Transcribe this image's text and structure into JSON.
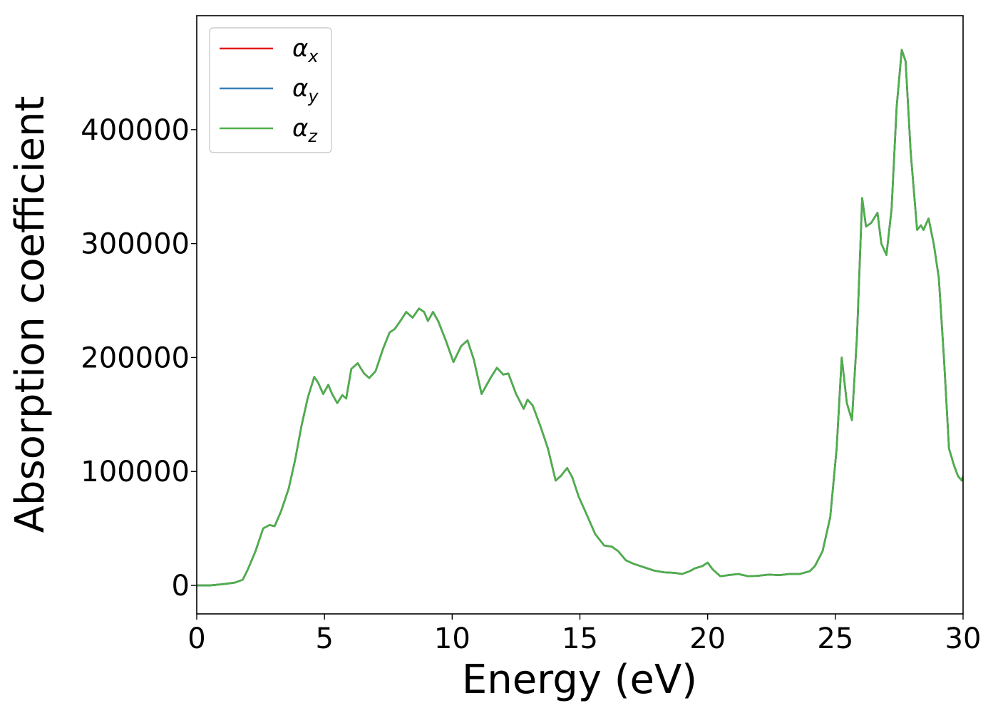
{
  "chart_data": {
    "type": "line",
    "title": "",
    "xlabel": "Energy (eV)",
    "ylabel": "Absorption coefficient",
    "xlim": [
      0,
      30
    ],
    "ylim": [
      -25000,
      500000
    ],
    "x_ticks": [
      0,
      5,
      10,
      15,
      20,
      25,
      30
    ],
    "x_tick_labels": [
      "0",
      "5",
      "10",
      "15",
      "20",
      "25",
      "30"
    ],
    "y_ticks": [
      0,
      100000,
      200000,
      300000,
      400000
    ],
    "y_tick_labels": [
      "0",
      "100000",
      "200000",
      "300000",
      "400000"
    ],
    "grid": false,
    "legend_position": "upper-left",
    "colors": {
      "alpha_x": "#e41a1c",
      "alpha_y": "#377eb8",
      "alpha_z": "#4daf4a",
      "frame": "#000000",
      "legend_border": "#cccccc"
    },
    "legend": [
      {
        "key": "alpha_x",
        "symbol": "α",
        "subscript": "x"
      },
      {
        "key": "alpha_y",
        "symbol": "α",
        "subscript": "y"
      },
      {
        "key": "alpha_z",
        "symbol": "α",
        "subscript": "z"
      }
    ],
    "x": [
      0,
      0.5,
      1,
      1.5,
      1.8,
      2,
      2.3,
      2.6,
      2.85,
      3.05,
      3.3,
      3.6,
      3.85,
      4.1,
      4.35,
      4.6,
      4.75,
      4.95,
      5.15,
      5.3,
      5.5,
      5.7,
      5.85,
      6.05,
      6.3,
      6.55,
      6.75,
      7,
      7.3,
      7.55,
      7.75,
      8,
      8.2,
      8.45,
      8.7,
      8.9,
      9.05,
      9.25,
      9.45,
      9.75,
      10.05,
      10.35,
      10.6,
      10.85,
      11.15,
      11.5,
      11.75,
      12,
      12.2,
      12.5,
      12.8,
      12.95,
      13.15,
      13.45,
      13.75,
      14.05,
      14.25,
      14.5,
      14.7,
      14.95,
      15.25,
      15.6,
      15.95,
      16.25,
      16.5,
      16.8,
      17.1,
      17.5,
      17.9,
      18.3,
      18.7,
      19,
      19.3,
      19.5,
      19.8,
      20,
      20.2,
      20.5,
      20.8,
      21.2,
      21.6,
      22,
      22.4,
      22.8,
      23.2,
      23.6,
      24,
      24.2,
      24.5,
      24.8,
      25.05,
      25.25,
      25.45,
      25.65,
      25.85,
      26.05,
      26.2,
      26.4,
      26.65,
      26.8,
      27,
      27.2,
      27.4,
      27.6,
      27.75,
      27.95,
      28.2,
      28.35,
      28.45,
      28.65,
      28.85,
      29.05,
      29.25,
      29.45,
      29.65,
      29.8,
      29.95,
      30
    ],
    "series": [
      {
        "key": "alpha_x",
        "values": [
          0,
          0,
          1000,
          2500,
          5000,
          14000,
          30000,
          50000,
          53000,
          52000,
          65000,
          85000,
          110000,
          140000,
          165000,
          183000,
          178000,
          168000,
          176000,
          168000,
          160000,
          167000,
          164000,
          190000,
          195000,
          186000,
          182000,
          188000,
          208000,
          222000,
          225000,
          233000,
          240000,
          235000,
          243000,
          240000,
          232000,
          240000,
          232000,
          215000,
          196000,
          210000,
          215000,
          198000,
          168000,
          182000,
          191000,
          185000,
          186000,
          168000,
          155000,
          163000,
          158000,
          140000,
          120000,
          92000,
          96000,
          103000,
          95000,
          78000,
          63000,
          45000,
          35000,
          34000,
          30000,
          22000,
          19000,
          16000,
          13000,
          11500,
          11000,
          10000,
          12500,
          15000,
          17000,
          20000,
          14000,
          8000,
          9000,
          10000,
          8000,
          8500,
          9500,
          9000,
          10000,
          10000,
          12500,
          17000,
          30000,
          60000,
          120000,
          200000,
          160000,
          145000,
          220000,
          340000,
          315000,
          318000,
          327000,
          300000,
          290000,
          330000,
          420000,
          470000,
          460000,
          380000,
          312000,
          316000,
          312000,
          322000,
          300000,
          270000,
          200000,
          120000,
          105000,
          96000,
          92000,
          96000
        ]
      },
      {
        "key": "alpha_y",
        "values": [
          0,
          0,
          1000,
          2500,
          5000,
          14000,
          30000,
          50000,
          53000,
          52000,
          65000,
          85000,
          110000,
          140000,
          165000,
          183000,
          178000,
          168000,
          176000,
          168000,
          160000,
          167000,
          164000,
          190000,
          195000,
          186000,
          182000,
          188000,
          208000,
          222000,
          225000,
          233000,
          240000,
          235000,
          243000,
          240000,
          232000,
          240000,
          232000,
          215000,
          196000,
          210000,
          215000,
          198000,
          168000,
          182000,
          191000,
          185000,
          186000,
          168000,
          155000,
          163000,
          158000,
          140000,
          120000,
          92000,
          96000,
          103000,
          95000,
          78000,
          63000,
          45000,
          35000,
          34000,
          30000,
          22000,
          19000,
          16000,
          13000,
          11500,
          11000,
          10000,
          12500,
          15000,
          17000,
          20000,
          14000,
          8000,
          9000,
          10000,
          8000,
          8500,
          9500,
          9000,
          10000,
          10000,
          12500,
          17000,
          30000,
          60000,
          120000,
          200000,
          160000,
          145000,
          220000,
          340000,
          315000,
          318000,
          327000,
          300000,
          290000,
          330000,
          420000,
          470000,
          460000,
          380000,
          312000,
          316000,
          312000,
          322000,
          300000,
          270000,
          200000,
          120000,
          105000,
          96000,
          92000,
          96000
        ]
      },
      {
        "key": "alpha_z",
        "values": [
          0,
          0,
          1000,
          2500,
          5000,
          14000,
          30000,
          50000,
          53000,
          52000,
          65000,
          85000,
          110000,
          140000,
          165000,
          183000,
          178000,
          168000,
          176000,
          168000,
          160000,
          167000,
          164000,
          190000,
          195000,
          186000,
          182000,
          188000,
          208000,
          222000,
          225000,
          233000,
          240000,
          235000,
          243000,
          240000,
          232000,
          240000,
          232000,
          215000,
          196000,
          210000,
          215000,
          198000,
          168000,
          182000,
          191000,
          185000,
          186000,
          168000,
          155000,
          163000,
          158000,
          140000,
          120000,
          92000,
          96000,
          103000,
          95000,
          78000,
          63000,
          45000,
          35000,
          34000,
          30000,
          22000,
          19000,
          16000,
          13000,
          11500,
          11000,
          10000,
          12500,
          15000,
          17000,
          20000,
          14000,
          8000,
          9000,
          10000,
          8000,
          8500,
          9500,
          9000,
          10000,
          10000,
          12500,
          17000,
          30000,
          60000,
          120000,
          200000,
          160000,
          145000,
          220000,
          340000,
          315000,
          318000,
          327000,
          300000,
          290000,
          330000,
          420000,
          470000,
          460000,
          380000,
          312000,
          316000,
          312000,
          322000,
          300000,
          270000,
          200000,
          120000,
          105000,
          96000,
          92000,
          96000
        ]
      }
    ]
  }
}
